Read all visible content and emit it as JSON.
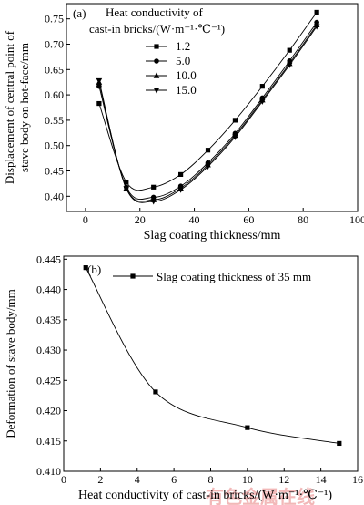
{
  "watermark": "有色金属在线",
  "chart_data": [
    {
      "type": "line",
      "panel_label": "(a)",
      "xlabel": "Slag coating thickness/mm",
      "ylabel_line1": "Displacement of central point of",
      "ylabel_line2": "stave body on hot-face/mm",
      "xlim": [
        -7,
        100
      ],
      "ylim": [
        0.37,
        0.78
      ],
      "xticks": [
        0,
        20,
        40,
        60,
        80,
        100
      ],
      "yticks": [
        0.4,
        0.45,
        0.5,
        0.55,
        0.6,
        0.65,
        0.7,
        0.75
      ],
      "legend_title_line1": "Heat conductivity of",
      "legend_title_line2": "cast-in bricks/(W·m⁻¹·℃⁻¹)",
      "legend_position": "top-left",
      "x": [
        5,
        15,
        25,
        35,
        45,
        55,
        65,
        75,
        85
      ],
      "series": [
        {
          "name": "1.2",
          "marker": "square",
          "values": [
            0.583,
            0.428,
            0.418,
            0.443,
            0.491,
            0.55,
            0.617,
            0.688,
            0.763
          ]
        },
        {
          "name": "5.0",
          "marker": "circle",
          "values": [
            0.617,
            0.418,
            0.398,
            0.42,
            0.466,
            0.524,
            0.594,
            0.667,
            0.743
          ]
        },
        {
          "name": "10.0",
          "marker": "triangle-up",
          "values": [
            0.625,
            0.416,
            0.393,
            0.416,
            0.462,
            0.52,
            0.59,
            0.662,
            0.738
          ]
        },
        {
          "name": "15.0",
          "marker": "triangle-down",
          "values": [
            0.628,
            0.415,
            0.39,
            0.413,
            0.459,
            0.517,
            0.587,
            0.659,
            0.735
          ]
        }
      ]
    },
    {
      "type": "line",
      "panel_label": "(b)",
      "xlabel": "Heat conductivity of cast-in bricks/(W·m⁻¹·℃⁻¹)",
      "ylabel": "Deformation of stave body/mm",
      "xlim": [
        0,
        16
      ],
      "ylim": [
        0.41,
        0.4455
      ],
      "xticks": [
        0,
        2,
        4,
        6,
        8,
        10,
        12,
        14,
        16
      ],
      "yticks": [
        0.41,
        0.415,
        0.42,
        0.425,
        0.43,
        0.435,
        0.44,
        0.445
      ],
      "legend_position": "top-right",
      "x": [
        1.2,
        5.0,
        10.0,
        15.0
      ],
      "series": [
        {
          "name": "Slag coating thickness of 35 mm",
          "marker": "square",
          "values": [
            0.4436,
            0.4231,
            0.4172,
            0.4146
          ]
        }
      ]
    }
  ]
}
